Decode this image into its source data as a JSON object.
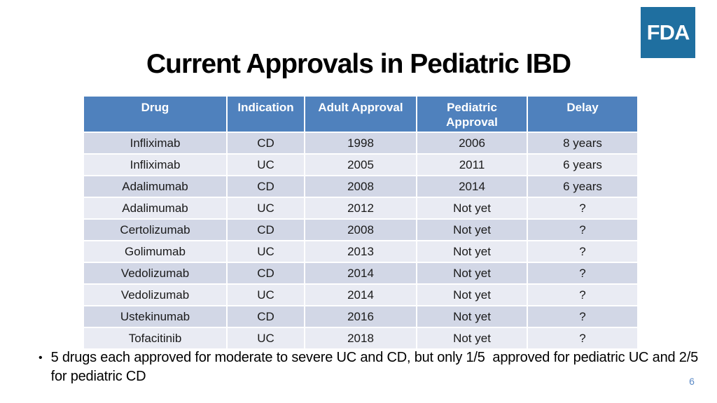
{
  "slide": {
    "title": "Current Approvals in Pediatric IBD",
    "logo_text": "FDA",
    "page_number": "6"
  },
  "table": {
    "headers": [
      "Drug",
      "Indication",
      "Adult Approval",
      "Pediatric Approval",
      "Delay"
    ],
    "rows": [
      [
        "Infliximab",
        "CD",
        "1998",
        "2006",
        "8 years"
      ],
      [
        "Infliximab",
        "UC",
        "2005",
        "2011",
        "6 years"
      ],
      [
        "Adalimumab",
        "CD",
        "2008",
        "2014",
        "6 years"
      ],
      [
        "Adalimumab",
        "UC",
        "2012",
        "Not yet",
        "?"
      ],
      [
        "Certolizumab",
        "CD",
        "2008",
        "Not yet",
        "?"
      ],
      [
        "Golimumab",
        "UC",
        "2013",
        "Not yet",
        "?"
      ],
      [
        "Vedolizumab",
        "CD",
        "2014",
        "Not yet",
        "?"
      ],
      [
        "Vedolizumab",
        "UC",
        "2014",
        "Not yet",
        "?"
      ],
      [
        "Ustekinumab",
        "CD",
        "2016",
        "Not yet",
        "?"
      ],
      [
        "Tofacitinib",
        "UC",
        "2018",
        "Not yet",
        "?"
      ]
    ]
  },
  "bullet": {
    "marker": "•",
    "text": "5 drugs each approved for moderate to severe UC and CD, but only 1/5  approved for pediatric UC and 2/5 for pediatric CD"
  },
  "colors": {
    "header_bg": "#4F81BD",
    "row_odd": "#D2D7E6",
    "row_even": "#E9EBF3",
    "logo_bg": "#1F6FA0",
    "page_number": "#5B8AC6"
  }
}
